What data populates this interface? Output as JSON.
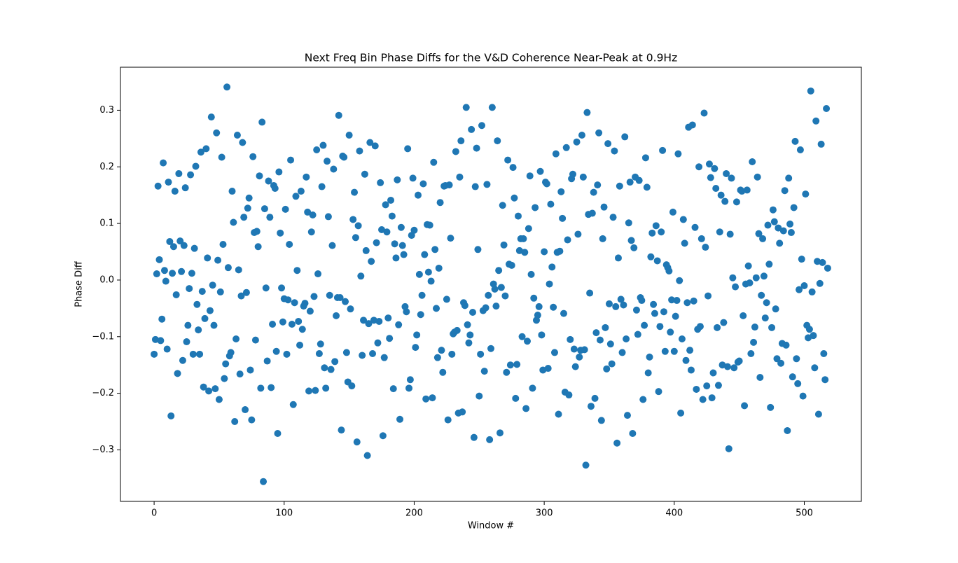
{
  "chart_data": {
    "type": "scatter",
    "title": "Next Freq Bin Phase Diffs for the V&D Coherence Near-Peak at 0.9Hz",
    "x_label": "Window #",
    "y_label": "Phase Diff",
    "color": "#1f77b4",
    "xlim": [
      -25.9,
      543.9
    ],
    "ylim": [
      -0.391,
      0.376
    ],
    "xticks": [
      0,
      100,
      200,
      300,
      400,
      500
    ],
    "yticks": [
      {
        "value": -0.3,
        "label": "−0.3"
      },
      {
        "value": -0.2,
        "label": "−0.2"
      },
      {
        "value": -0.1,
        "label": "−0.1"
      },
      {
        "value": 0,
        "label": "0.0"
      },
      0.1,
      0.2,
      0.3
    ],
    "x": [
      0,
      1,
      2,
      3,
      4,
      5,
      6,
      7,
      8,
      9,
      10,
      11,
      12,
      13,
      14,
      15,
      16,
      17,
      18,
      19,
      20,
      21,
      22,
      23,
      24,
      25,
      26,
      27,
      28,
      29,
      30,
      31,
      32,
      33,
      34,
      35,
      36,
      37,
      38,
      39,
      40,
      41,
      42,
      43,
      44,
      45,
      46,
      47,
      48,
      49,
      50,
      51,
      52,
      53,
      54,
      55,
      56,
      57,
      58,
      59,
      60,
      61,
      62,
      63,
      64,
      65,
      66,
      67,
      68,
      69,
      70,
      71,
      72,
      73,
      74,
      75,
      76,
      77,
      78,
      79,
      80,
      81,
      82,
      83,
      84,
      85,
      86,
      87,
      88,
      89,
      90,
      91,
      92,
      93,
      94,
      95,
      96,
      97,
      98,
      99,
      100,
      101,
      102,
      103,
      104,
      105,
      106,
      107,
      108,
      109,
      110,
      111,
      112,
      113,
      114,
      115,
      116,
      117,
      118,
      119,
      120,
      121,
      122,
      123,
      124,
      125,
      126,
      127,
      128,
      129,
      130,
      131,
      132,
      133,
      134,
      135,
      136,
      137,
      138,
      139,
      140,
      141,
      142,
      143,
      144,
      145,
      146,
      147,
      148,
      149,
      150,
      151,
      152,
      153,
      154,
      155,
      156,
      157,
      158,
      159,
      160,
      161,
      162,
      163,
      164,
      165,
      166,
      167,
      168,
      169,
      170,
      171,
      172,
      173,
      174,
      175,
      176,
      177,
      178,
      179,
      180,
      181,
      182,
      183,
      184,
      185,
      186,
      187,
      188,
      189,
      190,
      191,
      192,
      193,
      194,
      195,
      196,
      197,
      198,
      199,
      200,
      201,
      202,
      203,
      204,
      205,
      206,
      207,
      208,
      209,
      210,
      211,
      212,
      213,
      214,
      215,
      216,
      217,
      218,
      219,
      220,
      221,
      222,
      223,
      224,
      225,
      226,
      227,
      228,
      229,
      230,
      231,
      232,
      233,
      234,
      235,
      236,
      237,
      238,
      239,
      240,
      241,
      242,
      243,
      244,
      245,
      246,
      247,
      248,
      249,
      250,
      251,
      252,
      253,
      254,
      255,
      256,
      257,
      258,
      259,
      260,
      261,
      262,
      263,
      264,
      265,
      266,
      267,
      268,
      269,
      270,
      271,
      272,
      273,
      274,
      275,
      276,
      277,
      278,
      279,
      280,
      281,
      282,
      283,
      284,
      285,
      286,
      287,
      288,
      289,
      290,
      291,
      292,
      293,
      294,
      295,
      296,
      297,
      298,
      299,
      300,
      301,
      302,
      303,
      304,
      305,
      306,
      307,
      308,
      309,
      310,
      311,
      312,
      313,
      314,
      315,
      316,
      317,
      318,
      319,
      320,
      321,
      322,
      323,
      324,
      325,
      326,
      327,
      328,
      329,
      330,
      331,
      332,
      333,
      334,
      335,
      336,
      337,
      338,
      339,
      340,
      341,
      342,
      343,
      344,
      345,
      346,
      347,
      348,
      349,
      350,
      351,
      352,
      353,
      354,
      355,
      356,
      357,
      358,
      359,
      360,
      361,
      362,
      363,
      364,
      365,
      366,
      367,
      368,
      369,
      370,
      371,
      372,
      373,
      374,
      375,
      376,
      377,
      378,
      379,
      380,
      381,
      382,
      383,
      384,
      385,
      386,
      387,
      388,
      389,
      390,
      391,
      392,
      393,
      394,
      395,
      396,
      397,
      398,
      399,
      400,
      401,
      402,
      403,
      404,
      405,
      406,
      407,
      408,
      409,
      410,
      411,
      412,
      413,
      414,
      415,
      416,
      417,
      418,
      419,
      420,
      421,
      422,
      423,
      424,
      425,
      426,
      427,
      428,
      429,
      430,
      431,
      432,
      433,
      434,
      435,
      436,
      437,
      438,
      439,
      440,
      441,
      442,
      443,
      444,
      445,
      446,
      447,
      448,
      449,
      450,
      451,
      452,
      453,
      454,
      455,
      456,
      457,
      458,
      459,
      460,
      461,
      462,
      463,
      464,
      465,
      466,
      467,
      468,
      469,
      470,
      471,
      472,
      473,
      474,
      475,
      476,
      477,
      478,
      479,
      480,
      481,
      482,
      483,
      484,
      485,
      486,
      487,
      488,
      489,
      490,
      491,
      492,
      493,
      494,
      495,
      496,
      497,
      498,
      499,
      500,
      501,
      502,
      503,
      504,
      505,
      506,
      507,
      508,
      509,
      510,
      511,
      512,
      513,
      514,
      515,
      516,
      517,
      518
    ],
    "values": [
      -0.131,
      -0.105,
      0.011,
      0.166,
      0.036,
      -0.107,
      -0.069,
      0.207,
      0.017,
      -0.002,
      -0.122,
      0.173,
      0.068,
      -0.24,
      0.012,
      0.059,
      0.157,
      -0.026,
      -0.165,
      0.188,
      0.069,
      0.015,
      -0.142,
      0.061,
      0.163,
      -0.109,
      -0.08,
      -0.015,
      0.186,
      0.012,
      -0.131,
      0.056,
      0.201,
      -0.043,
      -0.088,
      -0.131,
      0.226,
      -0.02,
      -0.189,
      -0.068,
      0.232,
      0.039,
      -0.196,
      -0.054,
      0.288,
      -0.009,
      -0.08,
      -0.192,
      0.26,
      0.035,
      -0.211,
      -0.021,
      0.217,
      0.063,
      -0.174,
      -0.148,
      0.341,
      0.022,
      -0.134,
      -0.128,
      0.157,
      0.102,
      -0.25,
      -0.104,
      0.256,
      0.018,
      -0.166,
      -0.028,
      0.243,
      0.111,
      -0.229,
      -0.022,
      0.127,
      0.145,
      -0.159,
      -0.247,
      0.218,
      0.084,
      -0.106,
      0.086,
      0.059,
      0.184,
      -0.191,
      0.279,
      -0.356,
      0.126,
      -0.014,
      -0.143,
      0.175,
      0.111,
      -0.19,
      -0.078,
      0.167,
      0.162,
      -0.126,
      -0.271,
      0.191,
      0.083,
      -0.014,
      -0.074,
      -0.033,
      0.125,
      -0.131,
      -0.035,
      0.063,
      0.212,
      -0.078,
      -0.22,
      -0.04,
      0.148,
      0.017,
      -0.073,
      -0.115,
      0.157,
      -0.087,
      -0.046,
      -0.041,
      0.182,
      0.12,
      -0.196,
      -0.055,
      0.085,
      0.115,
      -0.029,
      -0.195,
      0.23,
      0.011,
      -0.13,
      -0.113,
      0.165,
      0.238,
      -0.155,
      -0.191,
      0.21,
      0.112,
      -0.027,
      -0.158,
      0.061,
      0.196,
      -0.144,
      -0.063,
      -0.031,
      0.291,
      -0.031,
      -0.265,
      0.219,
      0.217,
      -0.038,
      -0.128,
      -0.18,
      0.256,
      -0.051,
      -0.187,
      0.107,
      0.155,
      0.075,
      -0.286,
      0.096,
      0.228,
      0.007,
      -0.133,
      -0.071,
      0.187,
      0.052,
      -0.31,
      -0.077,
      0.243,
      0.033,
      -0.13,
      -0.071,
      0.237,
      0.066,
      -0.111,
      -0.073,
      0.172,
      0.089,
      -0.275,
      -0.137,
      0.133,
      0.085,
      -0.067,
      -0.103,
      0.141,
      0.113,
      -0.192,
      0.064,
      0.039,
      0.177,
      -0.079,
      -0.246,
      0.093,
      0.061,
      0.045,
      -0.047,
      -0.056,
      0.232,
      -0.191,
      -0.176,
      0.079,
      0.18,
      0.088,
      -0.119,
      -0.097,
      0.15,
      0.01,
      -0.061,
      -0.027,
      0.17,
      0.045,
      -0.21,
      0.098,
      0.014,
      0.097,
      -0.002,
      -0.208,
      0.208,
      0.054,
      -0.05,
      -0.137,
      0.021,
      0.137,
      -0.124,
      -0.163,
      0.166,
      0.167,
      -0.034,
      -0.247,
      0.168,
      0.074,
      -0.131,
      -0.095,
      -0.092,
      0.227,
      -0.089,
      -0.235,
      0.182,
      0.246,
      -0.233,
      -0.04,
      -0.045,
      0.305,
      -0.079,
      -0.111,
      -0.097,
      0.266,
      -0.057,
      -0.278,
      0.165,
      0.233,
      0.054,
      -0.205,
      -0.131,
      0.273,
      -0.054,
      -0.161,
      -0.049,
      0.169,
      -0.027,
      -0.282,
      -0.121,
      0.305,
      -0.007,
      -0.016,
      -0.046,
      0.246,
      0.017,
      -0.27,
      -0.013,
      0.132,
      0.062,
      -0.028,
      -0.163,
      0.212,
      0.028,
      -0.15,
      0.026,
      0.199,
      0.145,
      -0.209,
      -0.149,
      0.113,
      0.052,
      0.073,
      -0.1,
      0.073,
      0.049,
      -0.227,
      -0.108,
      0.091,
      0.184,
      0.01,
      -0.191,
      -0.032,
      0.128,
      -0.071,
      -0.062,
      -0.047,
      0.192,
      -0.097,
      -0.159,
      0.05,
      0.173,
      0.17,
      -0.156,
      -0.007,
      0.134,
      0.023,
      -0.048,
      -0.128,
      0.223,
      0.049,
      -0.237,
      0.051,
      0.156,
      0.109,
      -0.059,
      -0.198,
      0.234,
      0.071,
      -0.203,
      -0.105,
      0.179,
      0.187,
      -0.122,
      -0.153,
      0.244,
      0.081,
      -0.136,
      -0.124,
      0.256,
      0.182,
      -0.123,
      -0.327,
      0.296,
      0.116,
      -0.023,
      -0.223,
      0.118,
      0.155,
      -0.209,
      -0.093,
      0.168,
      0.26,
      -0.106,
      -0.248,
      0.073,
      0.129,
      -0.084,
      -0.157,
      0.241,
      -0.042,
      -0.113,
      -0.148,
      0.111,
      0.228,
      -0.047,
      -0.288,
      0.039,
      0.166,
      -0.034,
      -0.128,
      -0.044,
      0.253,
      -0.104,
      -0.239,
      0.101,
      0.173,
      0.07,
      -0.271,
      0.057,
      0.182,
      -0.053,
      -0.096,
      0.176,
      -0.031,
      -0.036,
      -0.211,
      -0.08,
      0.216,
      0.164,
      -0.164,
      -0.136,
      0.041,
      0.083,
      -0.043,
      -0.059,
      0.096,
      0.034,
      -0.197,
      -0.082,
      0.085,
      0.229,
      -0.056,
      -0.126,
      0.027,
      0.022,
      0.016,
      -0.092,
      -0.035,
      0.12,
      -0.126,
      -0.064,
      -0.036,
      0.223,
      -0.001,
      -0.235,
      -0.104,
      0.107,
      0.065,
      -0.142,
      -0.04,
      0.27,
      -0.124,
      -0.159,
      0.274,
      -0.037,
      0.093,
      -0.193,
      -0.087,
      0.2,
      -0.082,
      0.073,
      -0.211,
      0.295,
      0.058,
      -0.187,
      -0.028,
      0.205,
      0.181,
      -0.208,
      -0.164,
      0.197,
      0.162,
      -0.084,
      -0.186,
      0.085,
      0.15,
      -0.15,
      -0.075,
      0.139,
      0.188,
      -0.153,
      -0.298,
      0.081,
      0.18,
      0.004,
      -0.155,
      -0.012,
      0.138,
      -0.145,
      -0.143,
      0.159,
      0.157,
      -0.063,
      -0.222,
      -0.007,
      0.159,
      0.025,
      -0.005,
      -0.13,
      0.209,
      -0.11,
      -0.083,
      0.004,
      0.182,
      0.082,
      -0.172,
      -0.027,
      0.073,
      0.007,
      -0.067,
      -0.04,
      0.097,
      0.028,
      -0.225,
      -0.084,
      0.124,
      0.103,
      -0.051,
      -0.139,
      0.092,
      0.065,
      -0.147,
      -0.112,
      0.087,
      0.158,
      -0.115,
      -0.266,
      0.18,
      0.099,
      0.084,
      -0.171,
      0.128,
      0.245,
      -0.139,
      -0.183,
      -0.017,
      0.23,
      0.037,
      -0.205,
      -0.01,
      0.152,
      -0.08,
      -0.102,
      -0.087,
      0.334,
      -0.021,
      -0.098,
      -0.155,
      0.281,
      0.033,
      -0.237,
      -0.006,
      0.24,
      0.031,
      -0.13,
      -0.176,
      0.303,
      0.021
    ]
  }
}
